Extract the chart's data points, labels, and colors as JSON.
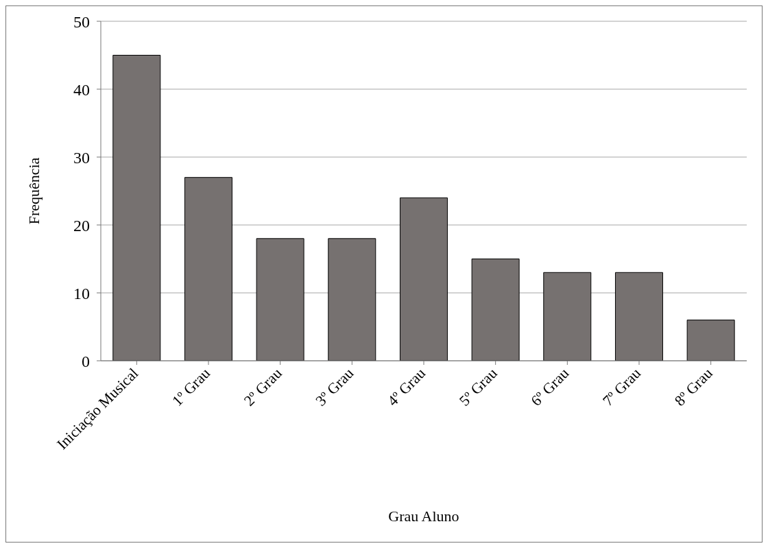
{
  "chart_data": {
    "type": "bar",
    "xlabel": "Grau Aluno",
    "ylabel": "Frequência",
    "categories": [
      "Iniciação Musical",
      "1º Grau",
      "2º Grau",
      "3º Grau",
      "4º Grau",
      "5º Grau",
      "6º Grau",
      "7º Grau",
      "8º Grau"
    ],
    "values": [
      45,
      27,
      18,
      18,
      24,
      15,
      13,
      13,
      6
    ],
    "color": "#767170",
    "ylim": [
      0,
      50
    ],
    "yticks": [
      0,
      10,
      20,
      30,
      40,
      50
    ],
    "grid": "y"
  }
}
